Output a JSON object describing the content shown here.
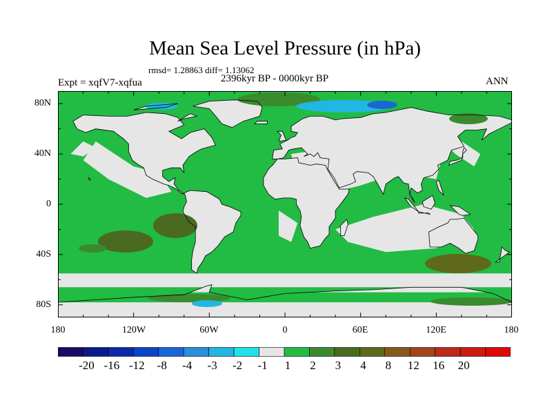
{
  "title": "Mean Sea Level Pressure (in hPa)",
  "stats": "rmsd= 1.28863 diff= 1.13062",
  "experiment": "Expt = xqfV7-xqfua",
  "period": "2396kyr BP - 0000kyr BP",
  "season": "ANN",
  "map": {
    "lon_range": [
      -180,
      180
    ],
    "lat_range": [
      -90,
      90
    ],
    "lat_labels": [
      "80N",
      "40N",
      "0",
      "40S",
      "80S"
    ],
    "lon_labels": [
      "180",
      "120W",
      "60W",
      "0",
      "60E",
      "120E",
      "180"
    ],
    "ocean_color": "#22bb44",
    "land_color": "#e6e6e6"
  },
  "colorbar": {
    "colors": [
      "#1a0a66",
      "#0a1a88",
      "#0a2aa8",
      "#0a44c4",
      "#1a66d4",
      "#2a8fd8",
      "#22b6e0",
      "#22e0ea",
      "#e6e6e6",
      "#22bb44",
      "#3a8a2e",
      "#4a6a22",
      "#5e6a1a",
      "#885a1a",
      "#a4441a",
      "#bb2a1a",
      "#cc1a14",
      "#dd0a0a"
    ],
    "labels": [
      "-20",
      "-16",
      "-12",
      "-8",
      "-4",
      "-3",
      "-2",
      "-1",
      "1",
      "2",
      "3",
      "4",
      "8",
      "12",
      "16",
      "20"
    ]
  }
}
